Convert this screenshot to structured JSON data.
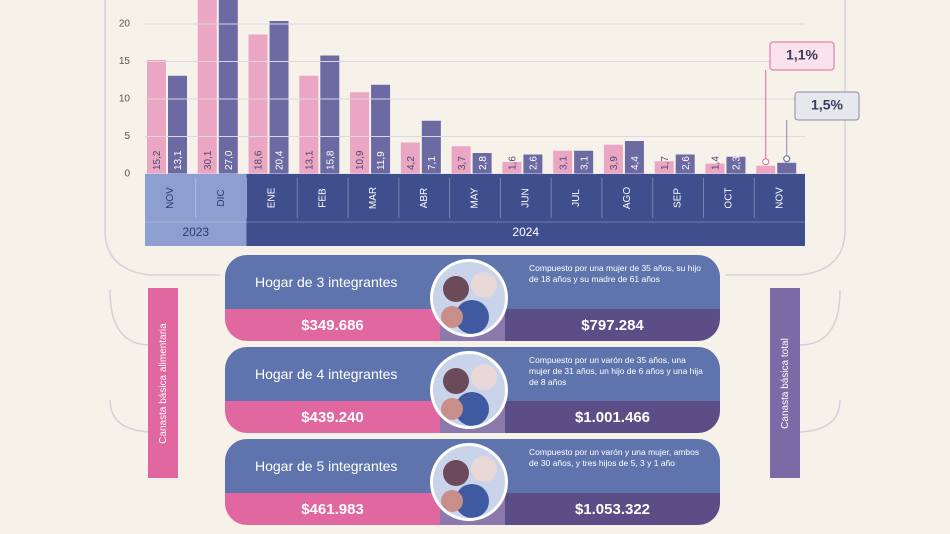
{
  "chart_data": {
    "type": "bar",
    "categories": [
      "NOV",
      "DIC",
      "ENE",
      "FEB",
      "MAR",
      "ABR",
      "MAY",
      "JUN",
      "JUL",
      "AGO",
      "SEP",
      "OCT",
      "NOV"
    ],
    "x_groups": [
      {
        "label": "2023",
        "count": 2
      },
      {
        "label": "2024",
        "count": 11
      }
    ],
    "series": [
      {
        "name": "Canasta básica alimentaria",
        "color": "#eaa6c3",
        "values": [
          15.2,
          30.1,
          18.6,
          13.1,
          10.9,
          4.2,
          3.7,
          1.6,
          3.1,
          3.9,
          1.7,
          1.4,
          1.1
        ],
        "value_labels": [
          "15,2",
          "30,1",
          "18,6",
          "13,1",
          "10,9",
          "4,2",
          "3,7",
          "1,6",
          "3,1",
          "3,9",
          "1,7",
          "1,4",
          "1,1%"
        ]
      },
      {
        "name": "Canasta básica total",
        "color": "#6c6aa2",
        "values": [
          13.1,
          27.0,
          20.4,
          15.8,
          11.9,
          7.1,
          2.8,
          2.6,
          3.1,
          4.4,
          2.6,
          2.3,
          1.5
        ],
        "value_labels": [
          "13,1",
          "27,0",
          "20,4",
          "15,8",
          "11,9",
          "7,1",
          "2,8",
          "2,6",
          "3,1",
          "4,4",
          "2,6",
          "2,3",
          "1,5%"
        ]
      }
    ],
    "ylim": [
      0,
      23.2
    ],
    "yticks": [
      0,
      5,
      10,
      15,
      20
    ],
    "grid": true
  },
  "households": [
    {
      "title": "Hogar de 3 integrantes",
      "description": "Compuesto por una mujer de 35 años, su hijo de 18 años y su madre de 61 años",
      "cba": "$349.686",
      "cbt": "$797.284"
    },
    {
      "title": "Hogar de 4 integrantes",
      "description": "Compuesto por un varón de 35 años, una mujer de 31 años, un hijo de 6 años y una hija de 8 años",
      "cba": "$439.240",
      "cbt": "$1.001.466"
    },
    {
      "title": "Hogar de 5 integrantes",
      "description": "Compuesto por un varón y una mujer, ambos de 30 años, y tres hijos de 5, 3 y 1 año",
      "cba": "$461.983",
      "cbt": "$1.053.322"
    }
  ]
}
